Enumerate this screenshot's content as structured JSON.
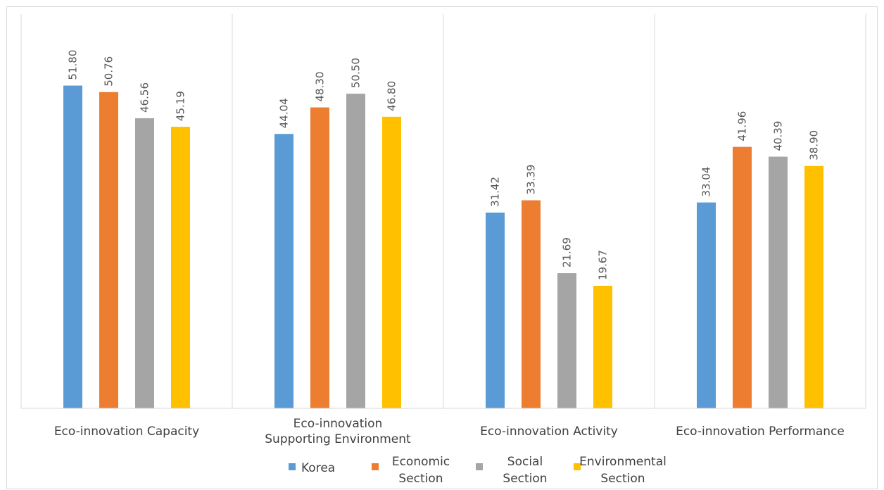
{
  "chart_data": {
    "type": "bar",
    "title": "",
    "xlabel": "",
    "ylabel": "",
    "ylim": [
      0,
      60
    ],
    "grid": false,
    "legend_position": "bottom",
    "categories": [
      [
        "Eco-innovation Capacity"
      ],
      [
        "Eco-innovation",
        "Supporting Environment"
      ],
      [
        "Eco-innovation Activity"
      ],
      [
        "Eco-innovation Performance"
      ]
    ],
    "series": [
      {
        "name": [
          "Korea"
        ],
        "color": "#5b9bd5",
        "values": [
          51.8,
          44.04,
          31.42,
          33.04
        ],
        "labels": [
          "51.80",
          "44.04",
          "31.42",
          "33.04"
        ]
      },
      {
        "name": [
          "Economic",
          "Section"
        ],
        "color": "#ed7d31",
        "values": [
          50.76,
          48.3,
          33.39,
          41.96
        ],
        "labels": [
          "50.76",
          "48.30",
          "33.39",
          "41.96"
        ]
      },
      {
        "name": [
          "Social",
          "Section"
        ],
        "color": "#a5a5a5",
        "values": [
          46.56,
          50.5,
          21.69,
          40.39
        ],
        "labels": [
          "46.56",
          "50.50",
          "21.69",
          "40.39"
        ]
      },
      {
        "name": [
          "Environmental",
          "Section"
        ],
        "color": "#ffc000",
        "values": [
          45.19,
          46.8,
          19.67,
          38.9
        ],
        "labels": [
          "45.19",
          "46.80",
          "19.67",
          "38.90"
        ]
      }
    ]
  }
}
